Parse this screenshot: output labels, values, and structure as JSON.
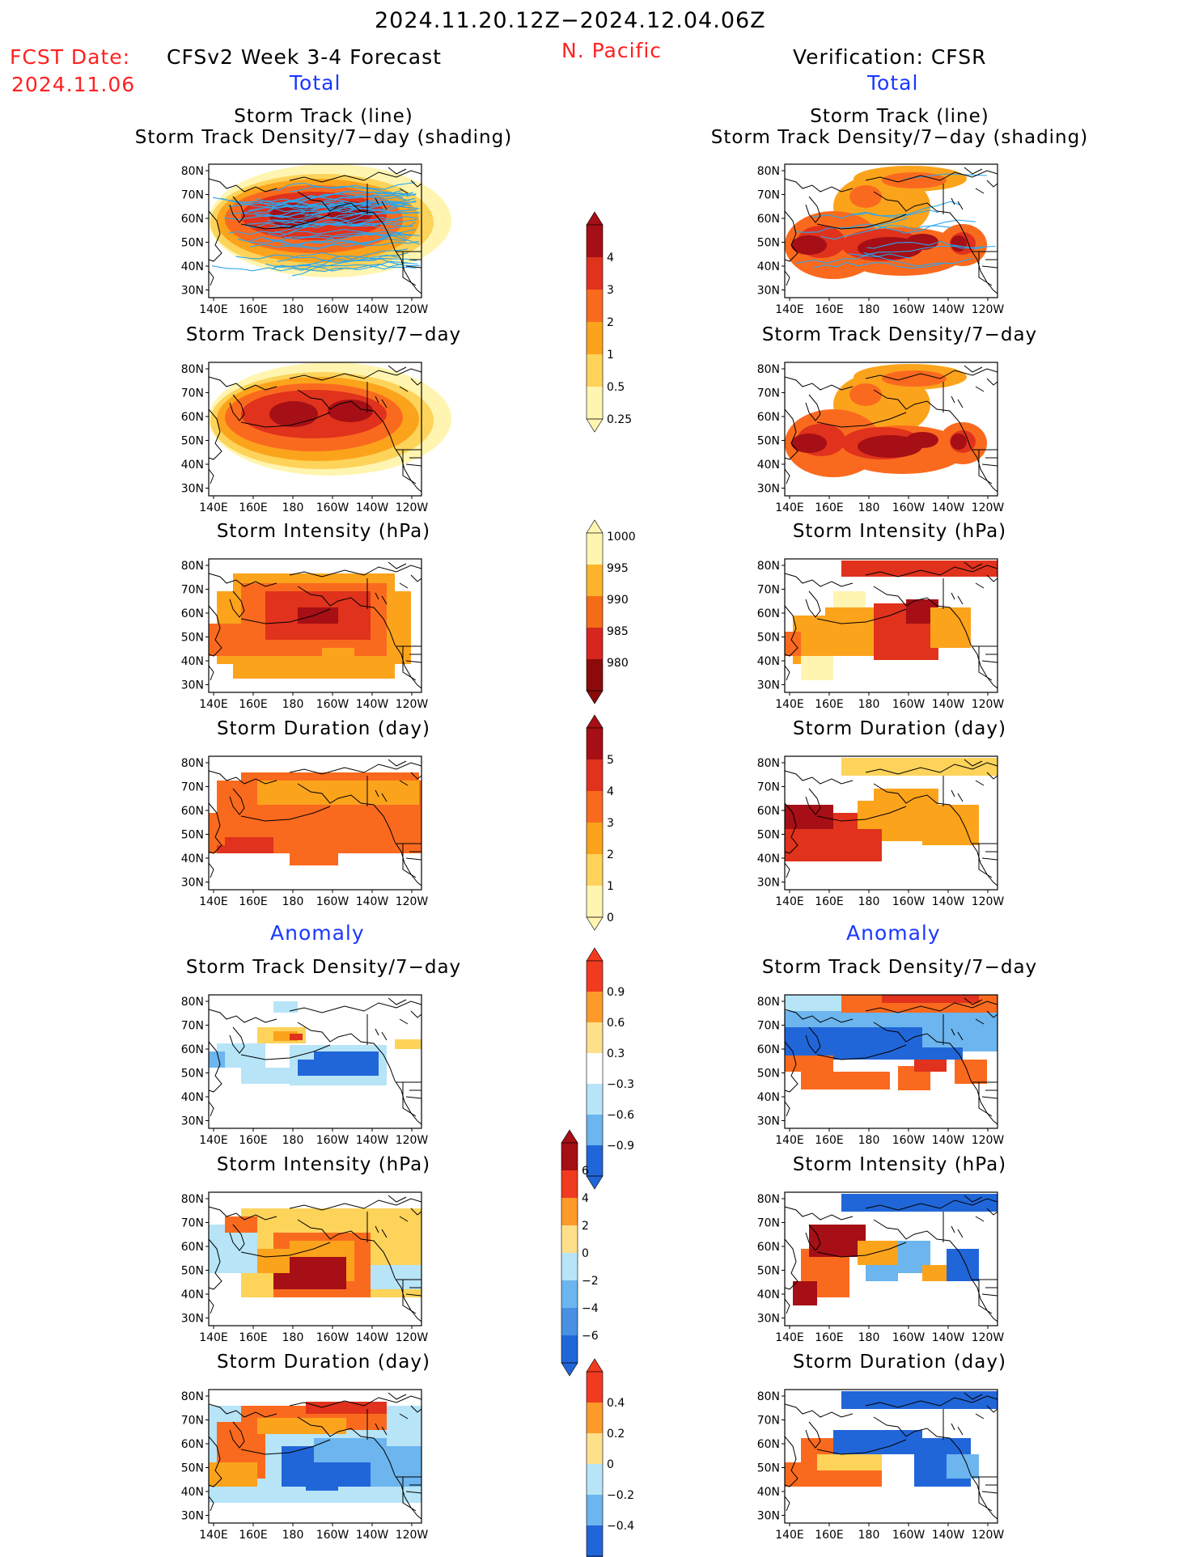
{
  "header": {
    "period": "2024.11.20.12Z−2024.12.04.06Z",
    "fcst_label": "FCST Date:",
    "fcst_date": "2024.11.06",
    "left_title": "CFSv2 Week 3-4 Forecast",
    "region": "N. Pacific",
    "right_title": "Verification: CFSR",
    "left_total": "Total",
    "right_total": "Total",
    "left_anomaly": "Anomaly",
    "right_anomaly": "Anomaly"
  },
  "panel_titles": {
    "track_line": "Storm Track (line)",
    "track_shading": "Storm Track Density/7−day (shading)",
    "density": "Storm Track Density/7−day",
    "intensity": "Storm Intensity (hPa)",
    "duration": "Storm Duration (day)"
  },
  "axes": {
    "lat_labels": [
      "80N",
      "70N",
      "60N",
      "50N",
      "40N",
      "30N"
    ],
    "lon_labels": [
      "140E",
      "160E",
      "180",
      "160W",
      "140W",
      "120W"
    ]
  },
  "colorbars": [
    {
      "id": "density_total",
      "labels": [
        "4",
        "3",
        "2",
        "1",
        "0.5",
        "0.25"
      ],
      "colors": [
        "#a50f15",
        "#e0321c",
        "#fa6a1e",
        "#fca31c",
        "#fdd35a",
        "#fff5b0"
      ]
    },
    {
      "id": "intensity_total",
      "labels": [
        "1000",
        "995",
        "990",
        "985",
        "980"
      ],
      "colors": [
        "#fff5b0",
        "#fdb42c",
        "#f46d16",
        "#d7261e",
        "#8c0a0a"
      ]
    },
    {
      "id": "duration_total",
      "labels": [
        "5",
        "4",
        "3",
        "2",
        "1",
        "0"
      ],
      "colors": [
        "#a50f15",
        "#e0321c",
        "#fa6a1e",
        "#fca31c",
        "#fdd35a",
        "#fff5b0"
      ]
    },
    {
      "id": "density_anom",
      "labels": [
        "0.9",
        "0.6",
        "0.3",
        "−0.3",
        "−0.6",
        "−0.9"
      ],
      "colors": [
        "#f03b20",
        "#fd9a2a",
        "#fee08b",
        "#ffffff",
        "#b7e4f7",
        "#6cb5ee",
        "#2166d8"
      ]
    },
    {
      "id": "intensity_anom",
      "labels": [
        "6",
        "4",
        "2",
        "0",
        "−2",
        "−4",
        "−6"
      ],
      "colors": [
        "#a50f15",
        "#f03b20",
        "#fd9a2a",
        "#fee08b",
        "#b7e4f7",
        "#6cb5ee",
        "#4a90e2",
        "#2166d8"
      ]
    },
    {
      "id": "duration_anom",
      "labels": [
        "0.4",
        "0.2",
        "0",
        "−0.2",
        "−0.4"
      ],
      "colors": [
        "#f03b20",
        "#fd9a2a",
        "#fee08b",
        "#b7e4f7",
        "#6cb5ee",
        "#2166d8"
      ]
    }
  ],
  "palette": {
    "dark_red": "#a50f15",
    "red": "#e0321c",
    "orange_red": "#fa6a1e",
    "orange": "#fca31c",
    "yellow": "#fdd35a",
    "pale": "#fff5b0",
    "anom_blue": "#2166d8",
    "anom_mid_blue": "#6cb5ee",
    "anom_light_blue": "#b7e4f7",
    "track_line": "#2aa6ee"
  }
}
